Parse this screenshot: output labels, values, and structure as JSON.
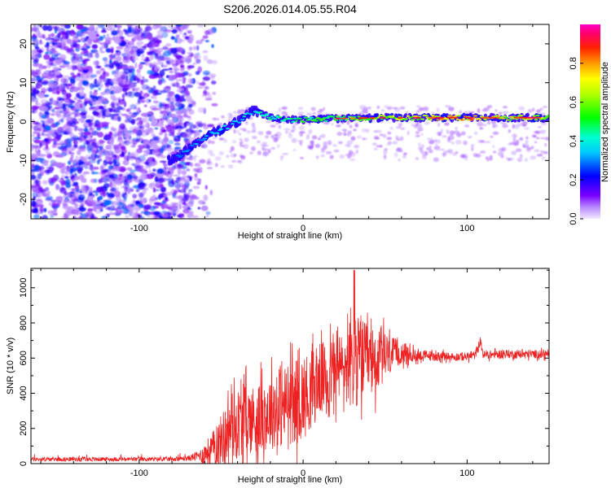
{
  "page_title": "S206.2026.014.05.55.R04",
  "colors": {
    "axis": "#000000",
    "snr_line": "#ee2222",
    "spectrogram_scatter": "#8b3fd6"
  },
  "chart_data": [
    {
      "type": "heatmap",
      "title": "S206.2026.014.05.55.R04",
      "xlabel": "Height of straight line (km)",
      "ylabel": "Frequency (Hz)",
      "xlim": [
        -166,
        150
      ],
      "ylim": [
        -25,
        25
      ],
      "xticks": [
        -100,
        0,
        100
      ],
      "xtick_labels": [
        "-100",
        "0",
        "100"
      ],
      "yticks": [
        -20,
        -10,
        0,
        10,
        20
      ],
      "ytick_labels": [
        "-20",
        "-10",
        "0",
        "10",
        "20"
      ],
      "colorbar": {
        "label": "Normalized spectral amplitude",
        "range": [
          0,
          1
        ],
        "ticks": [
          0.0,
          0.2,
          0.4,
          0.6,
          0.8
        ],
        "tick_labels": [
          "0.0",
          "0.2",
          "0.4",
          "0.6",
          "0.8"
        ]
      },
      "noise_region_x": [
        -166,
        -68
      ],
      "signal_trace": {
        "description_points_x": [
          -80,
          -70,
          -60,
          -50,
          -40,
          -30,
          -20,
          -10,
          0,
          20,
          50,
          80,
          100,
          120,
          150
        ],
        "frequency_hz": [
          -10,
          -7,
          -4,
          -2,
          0,
          3,
          1,
          0.5,
          0.5,
          0.8,
          1,
          1,
          1,
          1,
          1
        ],
        "amplitude": [
          0.2,
          0.25,
          0.3,
          0.35,
          0.4,
          0.4,
          0.45,
          0.5,
          0.55,
          0.6,
          0.7,
          0.85,
          0.95,
          0.8,
          0.75
        ]
      }
    },
    {
      "type": "line",
      "xlabel": "Height of straight line (km)",
      "ylabel": "SNR (10 * v/v)",
      "xlim": [
        -166,
        150
      ],
      "ylim": [
        0,
        1110
      ],
      "xticks": [
        -100,
        0,
        100
      ],
      "xtick_labels": [
        "-100",
        "0",
        "100"
      ],
      "yticks": [
        0,
        200,
        400,
        600,
        800,
        1000
      ],
      "ytick_labels": [
        "0",
        "200",
        "400",
        "600",
        "800",
        "1000"
      ],
      "series": [
        {
          "name": "SNR",
          "x": [
            -166,
            -150,
            -120,
            -100,
            -80,
            -70,
            -62,
            -55,
            -50,
            -45,
            -40,
            -35,
            -30,
            -25,
            -20,
            -15,
            -10,
            -5,
            0,
            5,
            10,
            15,
            20,
            25,
            30,
            35,
            40,
            45,
            50,
            55,
            60,
            65,
            70,
            80,
            90,
            100,
            105,
            108,
            110,
            120,
            130,
            140,
            150
          ],
          "values": [
            25,
            25,
            25,
            25,
            25,
            30,
            50,
            100,
            150,
            220,
            250,
            280,
            270,
            290,
            320,
            330,
            360,
            380,
            400,
            440,
            500,
            520,
            560,
            570,
            600,
            620,
            600,
            600,
            620,
            630,
            640,
            620,
            620,
            615,
            610,
            610,
            620,
            700,
            620,
            625,
            625,
            625,
            625
          ],
          "noise_amplitude": [
            20,
            20,
            20,
            20,
            20,
            25,
            60,
            120,
            180,
            220,
            250,
            250,
            250,
            260,
            270,
            280,
            300,
            300,
            300,
            280,
            260,
            250,
            250,
            250,
            350,
            300,
            250,
            220,
            180,
            120,
            80,
            60,
            40,
            35,
            30,
            30,
            30,
            30,
            30,
            30,
            30,
            30,
            30
          ]
        }
      ]
    }
  ]
}
